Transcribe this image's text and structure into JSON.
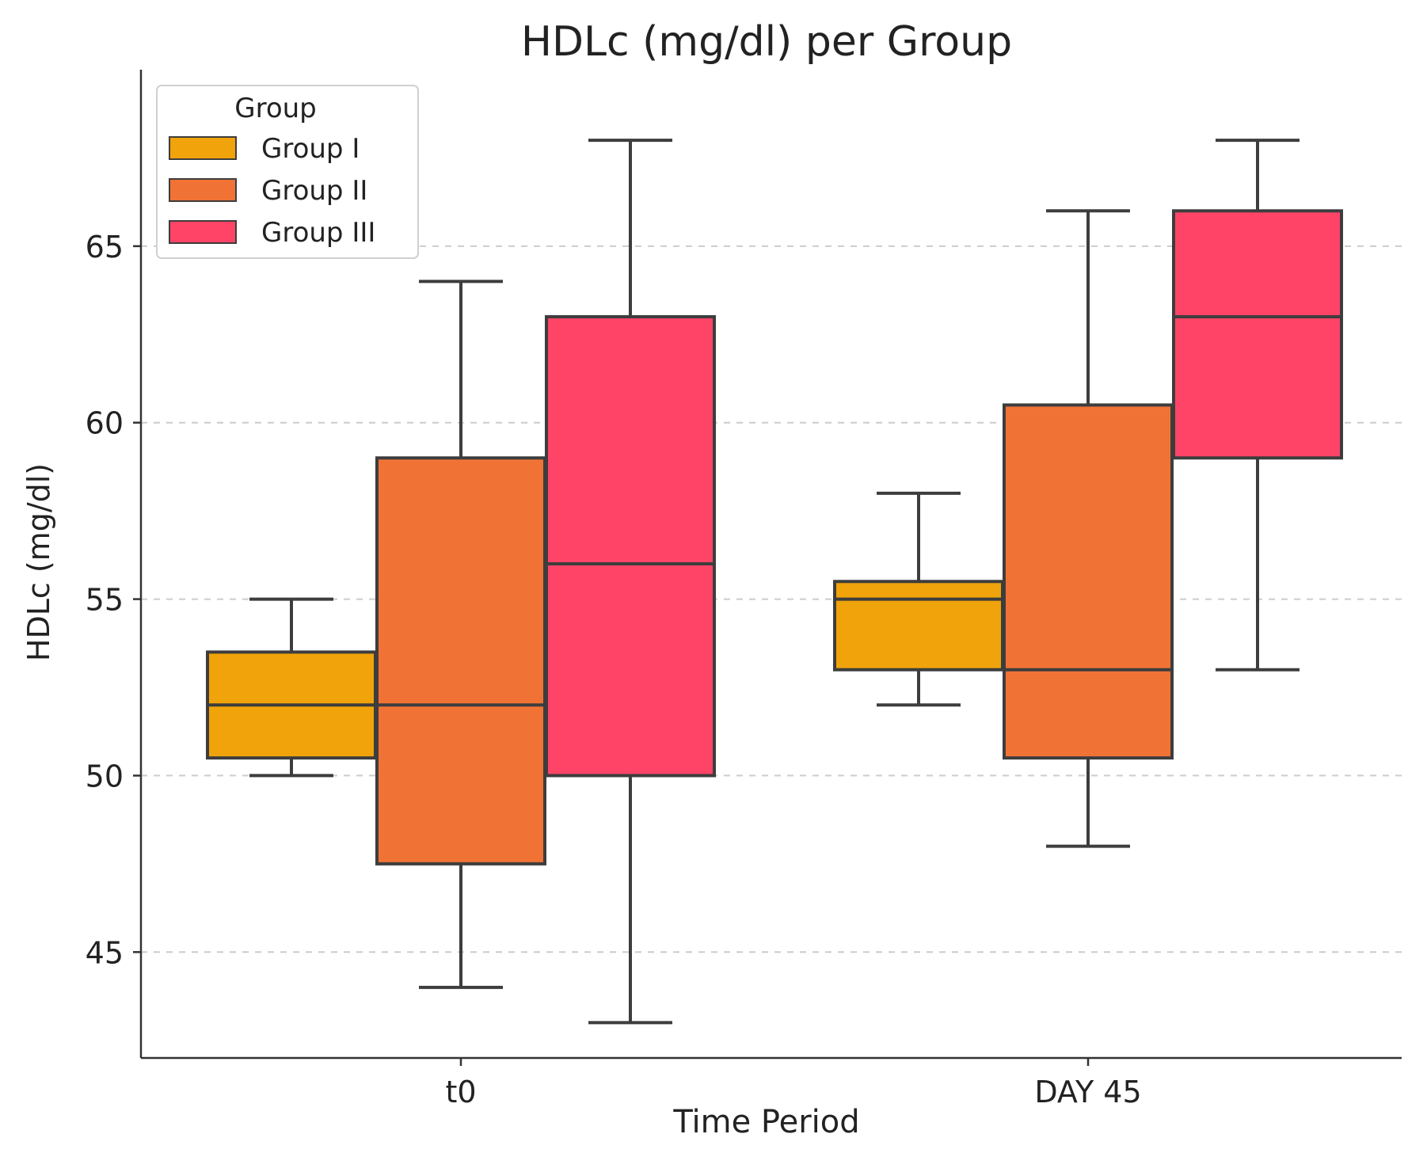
{
  "chart_data": {
    "type": "boxplot",
    "title": "HDLc (mg/dl) per Group",
    "xlabel": "Time Period",
    "ylabel": "HDLc (mg/dl)",
    "ylim": [
      42,
      70
    ],
    "yticks": [
      45,
      50,
      55,
      60,
      65
    ],
    "grid": "horizontal dashed",
    "categories": [
      "t0",
      "DAY 45"
    ],
    "legend": {
      "title": "Group",
      "placement": "top-left"
    },
    "series": [
      {
        "name": "Group I",
        "color": "#F0A30A",
        "boxes": [
          {
            "category": "t0",
            "whisker_low": 50,
            "q1": 50.5,
            "median": 52,
            "q3": 53.5,
            "whisker_high": 55
          },
          {
            "category": "DAY 45",
            "whisker_low": 52,
            "q1": 53,
            "median": 55,
            "q3": 55.5,
            "whisker_high": 58
          }
        ]
      },
      {
        "name": "Group II",
        "color": "#F07335",
        "boxes": [
          {
            "category": "t0",
            "whisker_low": 44,
            "q1": 47.5,
            "median": 52,
            "q3": 59,
            "whisker_high": 64
          },
          {
            "category": "DAY 45",
            "whisker_low": 48,
            "q1": 50.5,
            "median": 53,
            "q3": 60.5,
            "whisker_high": 66
          }
        ]
      },
      {
        "name": "Group III",
        "color": "#FF4468",
        "boxes": [
          {
            "category": "t0",
            "whisker_low": 43,
            "q1": 50,
            "median": 56,
            "q3": 63,
            "whisker_high": 68
          },
          {
            "category": "DAY 45",
            "whisker_low": 53,
            "q1": 59,
            "median": 63,
            "q3": 66,
            "whisker_high": 68
          }
        ]
      }
    ]
  }
}
